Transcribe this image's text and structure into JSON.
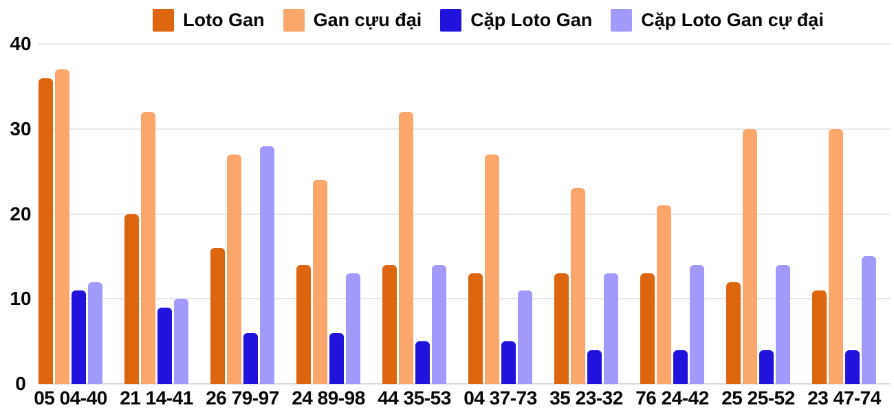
{
  "chart_data": {
    "type": "bar",
    "title": "",
    "xlabel": "",
    "ylabel": "",
    "categories": [
      "05 04-40",
      "21 14-41",
      "26 79-97",
      "24 89-98",
      "44 35-53",
      "04 37-73",
      "35 23-32",
      "76 24-42",
      "25 25-52",
      "23 47-74"
    ],
    "series": [
      {
        "name": "Loto Gan",
        "color": "#dd650e",
        "values": [
          36,
          20,
          16,
          14,
          14,
          13,
          13,
          13,
          12,
          11
        ]
      },
      {
        "name": "Gan cựu đại",
        "color": "#fba76c",
        "values": [
          37,
          32,
          27,
          24,
          32,
          27,
          23,
          21,
          30,
          30
        ]
      },
      {
        "name": "Cặp Loto Gan",
        "color": "#2213dc",
        "values": [
          11,
          9,
          6,
          6,
          5,
          5,
          4,
          4,
          4,
          4
        ]
      },
      {
        "name": "Cặp Loto Gan cự đại",
        "color": "#a29afb",
        "values": [
          12,
          10,
          28,
          13,
          14,
          11,
          13,
          14,
          14,
          15
        ]
      }
    ],
    "ylim": [
      0,
      40
    ],
    "yticks": [
      0,
      10,
      20,
      30,
      40
    ],
    "grid": true,
    "legend_position": "top",
    "colors": {
      "grid": "#e7e7e7",
      "baseline": "#dcdcdc",
      "text": "#060606",
      "background": "#ffffff"
    }
  }
}
